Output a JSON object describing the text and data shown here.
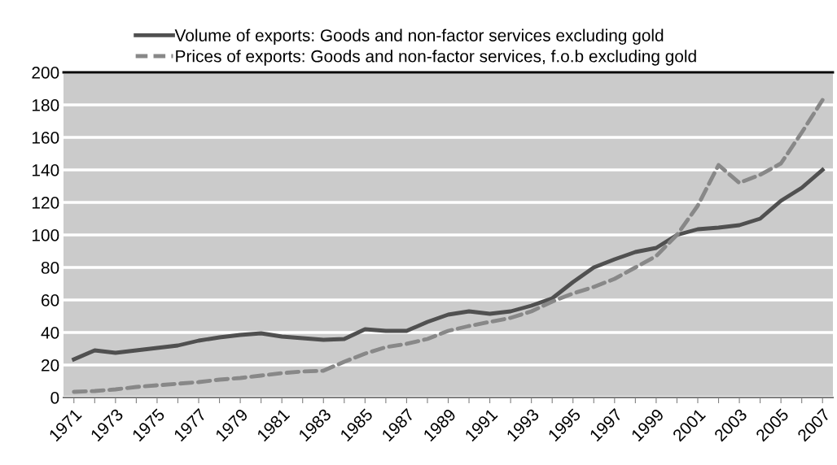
{
  "chart_data": {
    "type": "line",
    "categories": [
      "1971",
      null,
      "1973",
      null,
      "1975",
      null,
      "1977",
      null,
      "1979",
      null,
      "1981",
      null,
      "1983",
      null,
      "1985",
      null,
      "1987",
      null,
      "1989",
      null,
      "1991",
      null,
      "1993",
      null,
      "1995",
      null,
      "1997",
      null,
      "1999",
      null,
      "2001",
      null,
      "2003",
      null,
      "2005",
      null,
      "2007"
    ],
    "series": [
      {
        "name": "Volume of exports: Goods and non-factor services excluding gold",
        "color": "#505050",
        "line_style": "solid",
        "values": [
          23.5,
          29,
          27.5,
          29,
          30.5,
          32,
          35,
          37,
          38.5,
          39.5,
          37.5,
          36.5,
          35.5,
          36,
          42,
          41,
          41,
          46.5,
          51,
          53,
          51.5,
          53,
          56.5,
          61,
          71,
          80,
          85,
          89.5,
          92,
          100,
          103.5,
          104.5,
          106,
          110,
          121,
          129,
          140
        ]
      },
      {
        "name": "Prices of exports: Goods and non-factor services, f.o.b excluding gold",
        "color": "#888888",
        "line_style": "dashed",
        "values": [
          3.5,
          4,
          5,
          6.5,
          7.5,
          8.5,
          9.5,
          11,
          12,
          13.5,
          15,
          16,
          16.5,
          22,
          27,
          31,
          33,
          36,
          41,
          44,
          46.5,
          49,
          53,
          59,
          64,
          68,
          73,
          80,
          87,
          100,
          118,
          143,
          132,
          137,
          144,
          163,
          183
        ]
      }
    ],
    "ylim": [
      0,
      200
    ],
    "yticks": [
      0,
      20,
      40,
      60,
      80,
      100,
      120,
      140,
      160,
      180,
      200
    ],
    "grid": "y",
    "legend": "top",
    "marker": "none"
  }
}
